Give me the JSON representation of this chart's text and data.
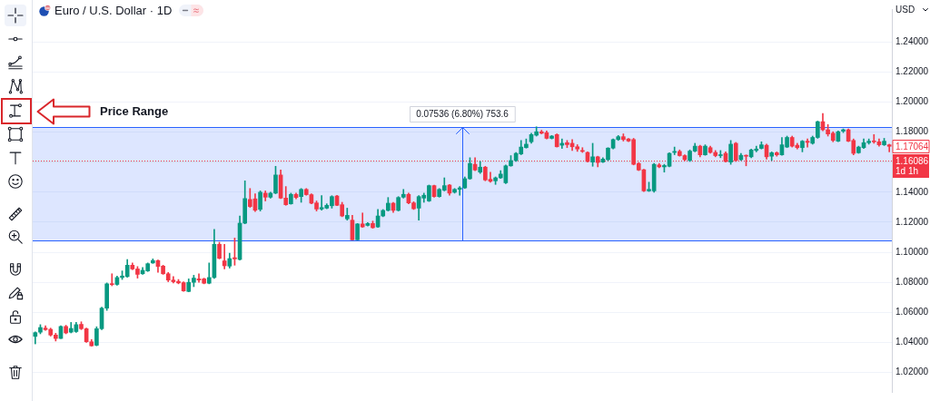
{
  "chart_data": {
    "type": "candlestick",
    "title": "Euro / U.S. Dollar · 1D",
    "ylabel": "USD",
    "categories": [
      null,
      null,
      null,
      null,
      null,
      null,
      null,
      null,
      null,
      null,
      null,
      null,
      null,
      null,
      null,
      null,
      null,
      null,
      null,
      null,
      null,
      null,
      null,
      null,
      null,
      null,
      null,
      null,
      null,
      null,
      null,
      null,
      null,
      null,
      null,
      null,
      null,
      null,
      null,
      null,
      null,
      null,
      null,
      null,
      null,
      null,
      null,
      null,
      null,
      null,
      null,
      null,
      null,
      null,
      null,
      null,
      null,
      null,
      null,
      null,
      null,
      null,
      null,
      null,
      null,
      null,
      null,
      null,
      null,
      null,
      null,
      null,
      null,
      null,
      null,
      null,
      null,
      null,
      null,
      null,
      null,
      null,
      null,
      null,
      null,
      null,
      null,
      null,
      null,
      null,
      null,
      null,
      null,
      null,
      null,
      null,
      null,
      null,
      null,
      null,
      null,
      null,
      null,
      null,
      null,
      null,
      null,
      null,
      null,
      null,
      null,
      null,
      null,
      null,
      null,
      null,
      null,
      null,
      null,
      null,
      null,
      null,
      null,
      null,
      null,
      null,
      null,
      null,
      null,
      null,
      null,
      null,
      null,
      null,
      null,
      null,
      null,
      null,
      null,
      null,
      null,
      null,
      null,
      null,
      null,
      null,
      null,
      null,
      null,
      null,
      null,
      null,
      null,
      null,
      null,
      null,
      null,
      null,
      null,
      null,
      null,
      null,
      null,
      null,
      null,
      null,
      null,
      null
    ],
    "ohlc": [
      [
        1.044,
        1.047,
        1.039,
        1.0465
      ],
      [
        1.0468,
        1.0518,
        1.0457,
        1.0499
      ],
      [
        1.0495,
        1.051,
        1.048,
        1.0485
      ],
      [
        1.0487,
        1.0495,
        1.0442,
        1.0449
      ],
      [
        1.0449,
        1.0461,
        1.0409,
        1.0426
      ],
      [
        1.0426,
        1.051,
        1.0425,
        1.0506
      ],
      [
        1.0506,
        1.0514,
        1.0457,
        1.0463
      ],
      [
        1.0468,
        1.0533,
        1.0463,
        1.0493
      ],
      [
        1.0472,
        1.0533,
        1.0466,
        1.0518
      ],
      [
        1.052,
        1.0537,
        1.0485,
        1.0491
      ],
      [
        1.0491,
        1.0495,
        1.04,
        1.0404
      ],
      [
        1.0404,
        1.0419,
        1.0375,
        1.0377
      ],
      [
        1.0381,
        1.0504,
        1.0377,
        1.0491
      ],
      [
        1.0491,
        1.0634,
        1.0485,
        1.0628
      ],
      [
        1.0628,
        1.0796,
        1.0613,
        1.079
      ],
      [
        1.079,
        1.0857,
        1.0777,
        1.0785
      ],
      [
        1.0786,
        1.0842,
        1.0781,
        1.0832
      ],
      [
        1.0832,
        1.0876,
        1.0819,
        1.0842
      ],
      [
        1.0838,
        1.0952,
        1.0834,
        1.0914
      ],
      [
        1.0914,
        1.0929,
        1.0884,
        1.0889
      ],
      [
        1.0889,
        1.0905,
        1.0828,
        1.0853
      ],
      [
        1.0857,
        1.0899,
        1.0853,
        1.088
      ],
      [
        1.0876,
        1.0929,
        1.0872,
        1.0924
      ],
      [
        1.0929,
        1.0956,
        1.0926,
        1.0945
      ],
      [
        1.0945,
        1.0948,
        1.0866,
        1.0906
      ],
      [
        1.0908,
        1.0914,
        1.0853,
        1.0857
      ],
      [
        1.0857,
        1.0866,
        1.0804,
        1.0815
      ],
      [
        1.0815,
        1.0838,
        1.0796,
        1.0804
      ],
      [
        1.0806,
        1.0819,
        1.079,
        1.0796
      ],
      [
        1.0798,
        1.0804,
        1.0739,
        1.0743
      ],
      [
        1.0739,
        1.0823,
        1.0737,
        1.08
      ],
      [
        1.08,
        1.0847,
        1.0771,
        1.0828
      ],
      [
        1.0823,
        1.0857,
        1.08,
        1.0815
      ],
      [
        1.0823,
        1.0828,
        1.079,
        1.0794
      ],
      [
        1.0794,
        1.0929,
        1.079,
        1.0832
      ],
      [
        1.0832,
        1.1152,
        1.0826,
        1.1053
      ],
      [
        1.1053,
        1.1067,
        1.0956,
        1.096
      ],
      [
        1.0943,
        1.1053,
        1.0889,
        1.091
      ],
      [
        1.0908,
        1.0994,
        1.0895,
        1.0958
      ],
      [
        1.0964,
        1.1095,
        1.0914,
        1.0956
      ],
      [
        1.0952,
        1.1242,
        1.0948,
        1.1194
      ],
      [
        1.1194,
        1.1476,
        1.119,
        1.1358
      ],
      [
        1.1352,
        1.1425,
        1.1299,
        1.1305
      ],
      [
        1.1356,
        1.139,
        1.1272,
        1.128
      ],
      [
        1.1286,
        1.1409,
        1.1275,
        1.14
      ],
      [
        1.1394,
        1.1409,
        1.1342,
        1.1367
      ],
      [
        1.1367,
        1.14,
        1.1361,
        1.1394
      ],
      [
        1.1394,
        1.1573,
        1.139,
        1.1515
      ],
      [
        1.1515,
        1.1548,
        1.1358,
        1.1361
      ],
      [
        1.1361,
        1.1438,
        1.1313,
        1.1317
      ],
      [
        1.1323,
        1.1394,
        1.132,
        1.1386
      ],
      [
        1.1386,
        1.1394,
        1.1356,
        1.1365
      ],
      [
        1.1371,
        1.1425,
        1.1333,
        1.1419
      ],
      [
        1.1419,
        1.1425,
        1.138,
        1.1384
      ],
      [
        1.1384,
        1.139,
        1.1323,
        1.1327
      ],
      [
        1.1329,
        1.1342,
        1.1275,
        1.1288
      ],
      [
        1.1288,
        1.1377,
        1.1281,
        1.1298
      ],
      [
        1.1294,
        1.1323,
        1.129,
        1.1313
      ],
      [
        1.131,
        1.1377,
        1.1294,
        1.1371
      ],
      [
        1.1375,
        1.138,
        1.131,
        1.1313
      ],
      [
        1.1317,
        1.1333,
        1.1237,
        1.1242
      ],
      [
        1.1223,
        1.1294,
        1.1214,
        1.1246
      ],
      [
        1.1214,
        1.1246,
        1.1082,
        1.1083
      ],
      [
        1.1083,
        1.1192,
        1.1082,
        1.1189
      ],
      [
        1.1189,
        1.1262,
        1.1166,
        1.1169
      ],
      [
        1.1179,
        1.1198,
        1.1175,
        1.1192
      ],
      [
        1.1192,
        1.1208,
        1.116,
        1.1164
      ],
      [
        1.1169,
        1.1285,
        1.1166,
        1.1242
      ],
      [
        1.1242,
        1.1285,
        1.1237,
        1.1279
      ],
      [
        1.1279,
        1.1365,
        1.1275,
        1.1327
      ],
      [
        1.1327,
        1.1333,
        1.1265,
        1.1279
      ],
      [
        1.1279,
        1.1371,
        1.1275,
        1.1365
      ],
      [
        1.1367,
        1.1419,
        1.1361,
        1.1386
      ],
      [
        1.1386,
        1.1394,
        1.1323,
        1.1329
      ],
      [
        1.1329,
        1.1337,
        1.1285,
        1.129
      ],
      [
        1.1294,
        1.1377,
        1.1214,
        1.1371
      ],
      [
        1.1361,
        1.1394,
        1.1333,
        1.138
      ],
      [
        1.1342,
        1.1448,
        1.1338,
        1.1444
      ],
      [
        1.1444,
        1.1448,
        1.1367,
        1.1371
      ],
      [
        1.1371,
        1.1425,
        1.1367,
        1.1419
      ],
      [
        1.1413,
        1.1496,
        1.1409,
        1.1444
      ],
      [
        1.1448,
        1.1452,
        1.138,
        1.1394
      ],
      [
        1.14,
        1.1425,
        1.1394,
        1.1419
      ],
      [
        1.1419,
        1.1438,
        1.138,
        1.1429
      ],
      [
        1.1429,
        1.1502,
        1.1425,
        1.149
      ],
      [
        1.149,
        1.163,
        1.1486,
        1.1592
      ],
      [
        1.1586,
        1.163,
        1.1544,
        1.1548
      ],
      [
        1.1534,
        1.1605,
        1.1525,
        1.1567
      ],
      [
        1.1567,
        1.1573,
        1.1476,
        1.1482
      ],
      [
        1.1486,
        1.1534,
        1.1467,
        1.1473
      ],
      [
        1.1476,
        1.1502,
        1.1452,
        1.1496
      ],
      [
        1.1496,
        1.1544,
        1.1492,
        1.1521
      ],
      [
        1.1463,
        1.1582,
        1.1457,
        1.1576
      ],
      [
        1.1576,
        1.1644,
        1.1573,
        1.1611
      ],
      [
        1.1611,
        1.1665,
        1.1605,
        1.1659
      ],
      [
        1.1655,
        1.1745,
        1.165,
        1.1701
      ],
      [
        1.1697,
        1.1755,
        1.1694,
        1.172
      ],
      [
        1.1736,
        1.1793,
        1.1726,
        1.1784
      ],
      [
        1.178,
        1.1836,
        1.1774,
        1.1803
      ],
      [
        1.1803,
        1.1813,
        1.1789,
        1.1793
      ],
      [
        1.1797,
        1.1809,
        1.1755,
        1.1759
      ],
      [
        1.1759,
        1.1778,
        1.1755,
        1.1774
      ],
      [
        1.1784,
        1.1789,
        1.1701,
        1.1703
      ],
      [
        1.1713,
        1.1755,
        1.1692,
        1.1726
      ],
      [
        1.173,
        1.1745,
        1.1697,
        1.1717
      ],
      [
        1.1726,
        1.1751,
        1.1678,
        1.1703
      ],
      [
        1.1703,
        1.1717,
        1.1672,
        1.1688
      ],
      [
        1.1678,
        1.1697,
        1.1665,
        1.1672
      ],
      [
        1.1665,
        1.1669,
        1.1601,
        1.1605
      ],
      [
        1.1601,
        1.1726,
        1.1573,
        1.1636
      ],
      [
        1.1636,
        1.164,
        1.1569,
        1.1598
      ],
      [
        1.1601,
        1.163,
        1.1598,
        1.1621
      ],
      [
        1.1617,
        1.1697,
        1.1611,
        1.1694
      ],
      [
        1.1694,
        1.1755,
        1.1688,
        1.1751
      ],
      [
        1.1751,
        1.1778,
        1.1745,
        1.177
      ],
      [
        1.177,
        1.1789,
        1.1741,
        1.1751
      ],
      [
        1.1755,
        1.1759,
        1.1736,
        1.1741
      ],
      [
        1.1751,
        1.1759,
        1.1582,
        1.1586
      ],
      [
        1.1592,
        1.1598,
        1.1544,
        1.1548
      ],
      [
        1.155,
        1.1553,
        1.1405,
        1.1409
      ],
      [
        1.1409,
        1.1467,
        1.1405,
        1.1419
      ],
      [
        1.1409,
        1.1592,
        1.14,
        1.1586
      ],
      [
        1.1582,
        1.1592,
        1.1563,
        1.1569
      ],
      [
        1.1569,
        1.1586,
        1.1534,
        1.1578
      ],
      [
        1.1573,
        1.1663,
        1.1569,
        1.1659
      ],
      [
        1.1665,
        1.1701,
        1.165,
        1.1672
      ],
      [
        1.1672,
        1.1682,
        1.164,
        1.1644
      ],
      [
        1.1644,
        1.165,
        1.161,
        1.1617
      ],
      [
        1.1611,
        1.1682,
        1.1605,
        1.1674
      ],
      [
        1.1674,
        1.1726,
        1.1669,
        1.1707
      ],
      [
        1.1707,
        1.1713,
        1.1636,
        1.1649
      ],
      [
        1.1649,
        1.1716,
        1.1646,
        1.1707
      ],
      [
        1.1697,
        1.1707,
        1.1659,
        1.1665
      ],
      [
        1.1665,
        1.1678,
        1.1636,
        1.1644
      ],
      [
        1.1644,
        1.1678,
        1.163,
        1.1649
      ],
      [
        1.1659,
        1.1669,
        1.1601,
        1.1605
      ],
      [
        1.1601,
        1.1745,
        1.1586,
        1.172
      ],
      [
        1.1726,
        1.1732,
        1.1605,
        1.1611
      ],
      [
        1.1617,
        1.1659,
        1.1611,
        1.1646
      ],
      [
        1.1646,
        1.1649,
        1.1576,
        1.164
      ],
      [
        1.1636,
        1.1688,
        1.163,
        1.1682
      ],
      [
        1.1678,
        1.1707,
        1.1669,
        1.1688
      ],
      [
        1.1692,
        1.1736,
        1.1688,
        1.1716
      ],
      [
        1.1713,
        1.172,
        1.1621,
        1.1636
      ],
      [
        1.164,
        1.1669,
        1.1611,
        1.1663
      ],
      [
        1.1663,
        1.1669,
        1.164,
        1.1649
      ],
      [
        1.1649,
        1.1765,
        1.1646,
        1.1716
      ],
      [
        1.1701,
        1.1774,
        1.1697,
        1.1765
      ],
      [
        1.1765,
        1.1774,
        1.1701,
        1.1707
      ],
      [
        1.1713,
        1.1726,
        1.1688,
        1.1697
      ],
      [
        1.1697,
        1.1745,
        1.1669,
        1.174
      ],
      [
        1.174,
        1.1755,
        1.1701,
        1.1732
      ],
      [
        1.1726,
        1.1774,
        1.172,
        1.1765
      ],
      [
        1.1765,
        1.1874,
        1.1759,
        1.187
      ],
      [
        1.187,
        1.1924,
        1.1809,
        1.1816
      ],
      [
        1.1816,
        1.1851,
        1.1774,
        1.1788
      ],
      [
        1.1793,
        1.1803,
        1.1736,
        1.1745
      ],
      [
        1.174,
        1.1809,
        1.1736,
        1.1803
      ],
      [
        1.1807,
        1.1822,
        1.1797,
        1.1816
      ],
      [
        1.1816,
        1.1822,
        1.1736,
        1.174
      ],
      [
        1.1745,
        1.1755,
        1.1649,
        1.1659
      ],
      [
        1.1663,
        1.1707,
        1.1659,
        1.1701
      ],
      [
        1.1697,
        1.1755,
        1.1692,
        1.173
      ],
      [
        1.173,
        1.1755,
        1.172,
        1.174
      ],
      [
        1.1742,
        1.1784,
        1.1726,
        1.1736
      ],
      [
        1.1736,
        1.1755,
        1.1707,
        1.1716
      ],
      [
        1.1716,
        1.1759,
        1.1711,
        1.174
      ],
      [
        1.1716,
        1.172,
        1.1669,
        1.1706
      ]
    ],
    "colors": [
      "#089981",
      "#089981",
      "#f23645",
      "#f23645",
      "#f23645",
      "#089981",
      "#f23645",
      "#089981",
      "#089981",
      "#f23645",
      "#f23645",
      "#f23645",
      "#089981",
      "#089981",
      "#089981",
      "#f23645",
      "#089981",
      "#089981",
      "#089981",
      "#f23645",
      "#f23645",
      "#089981",
      "#089981",
      "#089981",
      "#f23645",
      "#f23645",
      "#f23645",
      "#f23645",
      "#f23645",
      "#f23645",
      "#089981",
      "#089981",
      "#f23645",
      "#f23645",
      "#089981",
      "#089981",
      "#f23645",
      "#f23645",
      "#089981",
      "#f23645",
      "#089981",
      "#089981",
      "#f23645",
      "#f23645",
      "#089981",
      "#f23645",
      "#089981",
      "#089981",
      "#f23645",
      "#f23645",
      "#089981",
      "#f23645",
      "#089981",
      "#f23645",
      "#f23645",
      "#f23645",
      "#089981",
      "#089981",
      "#089981",
      "#f23645",
      "#f23645",
      "#089981",
      "#f23645",
      "#089981",
      "#f23645",
      "#089981",
      "#f23645",
      "#089981",
      "#089981",
      "#089981",
      "#f23645",
      "#089981",
      "#089981",
      "#f23645",
      "#f23645",
      "#089981",
      "#089981",
      "#089981",
      "#f23645",
      "#089981",
      "#089981",
      "#f23645",
      "#089981",
      "#089981",
      "#089981",
      "#089981",
      "#f23645",
      "#089981",
      "#f23645",
      "#f23645",
      "#089981",
      "#089981",
      "#089981",
      "#089981",
      "#089981",
      "#089981",
      "#089981",
      "#089981",
      "#089981",
      "#f23645",
      "#f23645",
      "#089981",
      "#f23645",
      "#089981",
      "#f23645",
      "#f23645",
      "#f23645",
      "#f23645",
      "#f23645",
      "#089981",
      "#f23645",
      "#089981",
      "#089981",
      "#089981",
      "#089981",
      "#f23645",
      "#f23645",
      "#f23645",
      "#f23645",
      "#f23645",
      "#089981",
      "#089981",
      "#f23645",
      "#089981",
      "#089981",
      "#089981",
      "#f23645",
      "#f23645",
      "#089981",
      "#089981",
      "#f23645",
      "#089981",
      "#f23645",
      "#f23645",
      "#089981",
      "#f23645",
      "#089981",
      "#f23645",
      "#089981",
      "#f23645",
      "#089981",
      "#089981",
      "#089981",
      "#f23645",
      "#089981",
      "#f23645",
      "#089981",
      "#089981",
      "#f23645",
      "#f23645",
      "#089981",
      "#f23645",
      "#089981",
      "#089981",
      "#f23645",
      "#f23645",
      "#f23645",
      "#089981",
      "#089981",
      "#f23645",
      "#f23645",
      "#089981",
      "#089981",
      "#089981",
      "#f23645",
      "#f23645",
      "#089981",
      "#f23645"
    ],
    "ylim": [
      1.007,
      1.262
    ],
    "yticks": [
      {
        "value": 1.02,
        "label": "1.02000"
      },
      {
        "value": 1.04,
        "label": "1.04000"
      },
      {
        "value": 1.06,
        "label": "1.06000"
      },
      {
        "value": 1.08,
        "label": "1.08000"
      },
      {
        "value": 1.1,
        "label": "1.10000"
      },
      {
        "value": 1.12,
        "label": "1.12000"
      },
      {
        "value": 1.14,
        "label": "1.14000"
      },
      {
        "value": 1.16,
        "label": null
      },
      {
        "value": 1.18,
        "label": "1.18000"
      },
      {
        "value": 1.2,
        "label": "1.20000"
      },
      {
        "value": 1.22,
        "label": "1.22000"
      },
      {
        "value": 1.24,
        "label": "1.24000"
      }
    ],
    "grid": "y",
    "tick_labels": "y",
    "ref_lines": [
      {
        "axis": "y",
        "value": 1.16086,
        "label": "1.16086 1d 1h",
        "color": "#f23645",
        "line_style": "dotted"
      },
      {
        "axis": "y",
        "value": 1.1082,
        "color": "#2962ff",
        "line_style": "solid"
      },
      {
        "axis": "y",
        "value": 1.1836,
        "color": "#2962ff",
        "line_style": "solid"
      }
    ],
    "bands": [
      {
        "axis": "y",
        "from": 1.1082,
        "to": 1.1836,
        "label": "0.07536 (6.80%) 753.6",
        "color": "#2962ff"
      }
    ],
    "annotations": [
      {
        "text": "1.17064",
        "y": 1.17064
      },
      "Price Range"
    ]
  }
}
